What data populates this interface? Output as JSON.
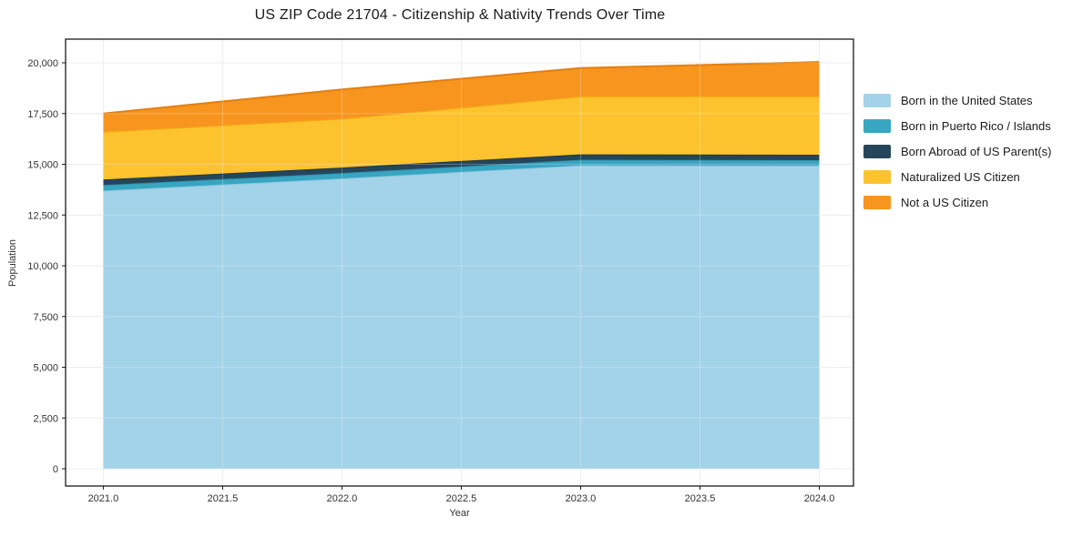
{
  "chart_data": {
    "type": "area",
    "stacked": true,
    "title": "US ZIP Code 21704 - Citizenship & Nativity Trends Over Time",
    "xlabel": "Year",
    "ylabel": "Population",
    "x": [
      2021,
      2022,
      2023,
      2024
    ],
    "series": [
      {
        "name": "Born in the United States",
        "color": "#a3d3e8",
        "edge": "#8fc6e0",
        "values": [
          13700,
          14300,
          14950,
          14930
        ]
      },
      {
        "name": "Born in Puerto Rico / Islands",
        "color": "#38a5c1",
        "edge": "#2d93ae",
        "values": [
          280,
          270,
          270,
          270
        ]
      },
      {
        "name": "Born Abroad of US Parent(s)",
        "color": "#25465a",
        "edge": "#1c3949",
        "values": [
          270,
          270,
          270,
          270
        ]
      },
      {
        "name": "Naturalized US Citizen",
        "color": "#fdc32f",
        "edge": "#efae16",
        "values": [
          2350,
          2400,
          2850,
          2870
        ]
      },
      {
        "name": "Not a US Citizen",
        "color": "#f8951f",
        "edge": "#e37f10",
        "values": [
          900,
          1450,
          1400,
          1700
        ]
      }
    ],
    "xlim": [
      2020.842,
      2024.143
    ],
    "ylim": [
      -852,
      21166
    ],
    "xticks": {
      "values": [
        2021.0,
        2021.5,
        2022.0,
        2022.5,
        2023.0,
        2023.5,
        2024.0
      ],
      "labels": [
        "2021.0",
        "2021.5",
        "2022.0",
        "2022.5",
        "2023.0",
        "2023.5",
        "2024.0"
      ]
    },
    "yticks": {
      "values": [
        0,
        2500,
        5000,
        7500,
        10000,
        12500,
        15000,
        17500,
        20000
      ],
      "labels": [
        "0",
        "2,500",
        "5,000",
        "7,500",
        "10,000",
        "12,500",
        "15,000",
        "17,500",
        "20,000"
      ]
    },
    "grid": true,
    "legend_position": "right",
    "colors": {
      "grid": "#e7e7e7",
      "spine": "#1a1a1a",
      "tick_text": "#333333",
      "background": "#ffffff"
    }
  }
}
